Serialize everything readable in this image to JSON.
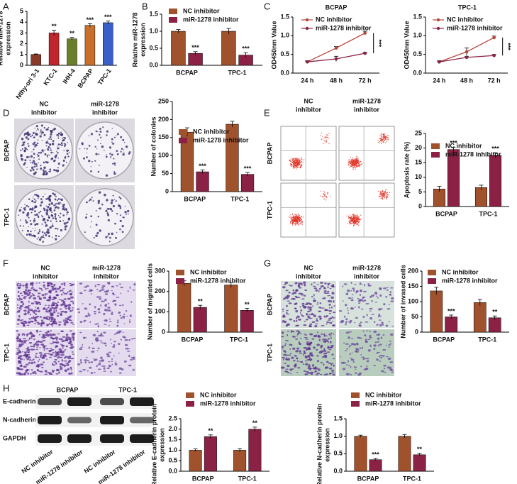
{
  "panel_labels": [
    "A",
    "B",
    "C",
    "D",
    "E",
    "F",
    "G",
    "H"
  ],
  "figures": {
    "D": {
      "columns": [
        [
          "NC",
          "inhibitor"
        ],
        [
          "miR-1278",
          "inhibitor"
        ]
      ],
      "rows": [
        "BCPAP",
        "TPC-1"
      ]
    },
    "E": {
      "columns": [
        [
          "NC",
          "inhibitor"
        ],
        [
          "miR-1278",
          "inhibitor"
        ]
      ],
      "rows": [
        "BCPAP",
        "TPC-1"
      ]
    },
    "F": {
      "columns": [
        [
          "NC",
          "inhibitor"
        ],
        [
          "miR-1278",
          "inhibitor"
        ]
      ],
      "rows": [
        "BCPAP",
        "TPC-1"
      ]
    },
    "G": {
      "columns": [
        [
          "NC",
          "inhibitor"
        ],
        [
          "miR-1278",
          "inhibitor"
        ]
      ],
      "rows": [
        "BCPAP",
        "TPC-1"
      ]
    },
    "H": {
      "columns": [
        "BCPAP",
        "TPC-1"
      ],
      "rows": [
        "E-cadherin",
        "N-cadherin",
        "GAPDH"
      ],
      "lanes": [
        "NC inhibitor",
        "miR-1278 inhibitor",
        "NC inhibitor",
        "miR-1278 inhibitor"
      ]
    }
  },
  "chart_data": [
    {
      "type": "bar",
      "y_label": [
        "Relative miR-1278",
        "expression"
      ],
      "categories": [
        "Nthy-ori 3-1",
        "KTC-1",
        "IHH-4",
        "BCPAP",
        "TPC-1"
      ],
      "values": [
        1.0,
        3.0,
        2.45,
        3.7,
        3.95
      ],
      "errors": [
        0.05,
        0.25,
        0.15,
        0.15,
        0.15
      ],
      "colors": [
        "#8b3a2a",
        "#c0262c",
        "#6b7f2a",
        "#c8702a",
        "#3a5fc8"
      ],
      "annotations": [
        null,
        "**",
        "**",
        "***",
        "***"
      ],
      "ylim": [
        0,
        5
      ],
      "yticks": [
        0,
        1,
        2,
        3,
        4,
        5
      ]
    },
    {
      "type": "grouped_bar",
      "y_label": [
        "Relative miR-1278",
        "expression"
      ],
      "categories": [
        "BCPAP",
        "TPC-1"
      ],
      "series": [
        {
          "name": "NC inhibitor",
          "color": "#a0522d",
          "values": [
            1.0,
            1.0
          ],
          "errors": [
            0.05,
            0.08
          ]
        },
        {
          "name": "miR-1278 inhibitor",
          "color": "#8b2245",
          "values": [
            0.35,
            0.3
          ],
          "errors": [
            0.05,
            0.07
          ],
          "annotations": [
            "***",
            "***"
          ]
        }
      ],
      "ylim": [
        0,
        1.5
      ],
      "yticks": [
        {
          "value": 0,
          "label": "0.0"
        },
        {
          "value": 0.5,
          "label": "0.5"
        },
        {
          "value": 1,
          "label": "1.0"
        },
        {
          "value": 1.5,
          "label": "1.5"
        }
      ]
    },
    {
      "type": "line",
      "title": "BCPAP",
      "y_label": [
        "OD450nm Value"
      ],
      "categories": [
        "24 h",
        "48 h",
        "72 h"
      ],
      "series": [
        {
          "name": "NC inhibitor",
          "color": "#b5473a",
          "values": [
            0.3,
            0.67,
            1.07
          ],
          "errors": [
            0.03,
            0.04,
            0.05
          ]
        },
        {
          "name": "miR-1278 inhibitor",
          "color": "#8b2245",
          "values": [
            0.3,
            0.38,
            0.53
          ],
          "errors": [
            0.02,
            0.07,
            0.03
          ]
        }
      ],
      "annotation": "***",
      "ylim": [
        0,
        1.5
      ],
      "yticks": [
        {
          "value": 0,
          "label": "0.0"
        },
        {
          "value": 0.5,
          "label": "0.5"
        },
        {
          "value": 1,
          "label": "1.0"
        },
        {
          "value": 1.5,
          "label": "1.5"
        }
      ]
    },
    {
      "type": "line",
      "title": "TPC-1",
      "y_label": [
        "OD450nm Value"
      ],
      "categories": [
        "24 h",
        "48 h",
        "72 h"
      ],
      "series": [
        {
          "name": "NC inhibitor",
          "color": "#b5473a",
          "values": [
            0.3,
            0.57,
            0.95
          ],
          "errors": [
            0.03,
            0.1,
            0.04
          ]
        },
        {
          "name": "miR-1278 inhibitor",
          "color": "#8b2245",
          "values": [
            0.3,
            0.42,
            0.47
          ],
          "errors": [
            0.02,
            0.03,
            0.03
          ]
        }
      ],
      "annotation": "***",
      "ylim": [
        0,
        1.5
      ],
      "yticks": [
        {
          "value": 0,
          "label": "0.0"
        },
        {
          "value": 0.5,
          "label": "0.5"
        },
        {
          "value": 1,
          "label": "1.0"
        },
        {
          "value": 1.5,
          "label": "1.5"
        }
      ]
    },
    {
      "type": "grouped_bar",
      "y_label": [
        "Number of colonies"
      ],
      "categories": [
        "BCPAP",
        "TPC-1"
      ],
      "series": [
        {
          "name": "NC inhibitor",
          "color": "#a0522d",
          "values": [
            165,
            187
          ],
          "errors": [
            12,
            8
          ]
        },
        {
          "name": "miR-1278 inhibitor",
          "color": "#8b2245",
          "values": [
            55,
            48
          ],
          "errors": [
            5,
            5
          ],
          "annotations": [
            "***",
            "***"
          ]
        }
      ],
      "ylim": [
        0,
        250
      ],
      "yticks": [
        0,
        50,
        100,
        150,
        200,
        250
      ]
    },
    {
      "type": "grouped_bar",
      "y_label": [
        "Apoptosis rate (%)"
      ],
      "categories": [
        "BCPAP",
        "TPC-1"
      ],
      "series": [
        {
          "name": "NC inhibitor",
          "color": "#a0522d",
          "values": [
            6.0,
            6.5
          ],
          "errors": [
            0.9,
            0.8
          ]
        },
        {
          "name": "miR-1278 inhibitor",
          "color": "#8b2245",
          "values": [
            19.5,
            17.5
          ],
          "errors": [
            0.8,
            0.9
          ],
          "annotations": [
            "***",
            "***"
          ]
        }
      ],
      "ylim": [
        0,
        25
      ],
      "yticks": [
        0,
        5,
        10,
        15,
        20,
        25
      ]
    },
    {
      "type": "grouped_bar",
      "y_label": [
        "Number of migrated cells"
      ],
      "categories": [
        "BCPAP",
        "TPC-1"
      ],
      "series": [
        {
          "name": "NC inhibitor",
          "color": "#a0522d",
          "values": [
            240,
            232
          ],
          "errors": [
            12,
            12
          ]
        },
        {
          "name": "miR-1278 inhibitor",
          "color": "#8b2245",
          "values": [
            122,
            107
          ],
          "errors": [
            10,
            10
          ],
          "annotations": [
            "**",
            "**"
          ]
        }
      ],
      "ylim": [
        0,
        300
      ],
      "yticks": [
        0,
        100,
        200,
        300
      ]
    },
    {
      "type": "grouped_bar",
      "y_label": [
        "Number of invased cells"
      ],
      "categories": [
        "BCPAP",
        "TPC-1"
      ],
      "series": [
        {
          "name": "NC inhibitor",
          "color": "#a0522d",
          "values": [
            135,
            97
          ],
          "errors": [
            12,
            10
          ]
        },
        {
          "name": "miR-1278 inhibitor",
          "color": "#8b2245",
          "values": [
            50,
            47
          ],
          "errors": [
            6,
            6
          ],
          "annotations": [
            "***",
            "**"
          ]
        }
      ],
      "ylim": [
        0,
        200
      ],
      "yticks": [
        0,
        50,
        100,
        150,
        200
      ]
    },
    {
      "type": "grouped_bar",
      "y_label": [
        "Relative E-cadherin protein",
        "expression"
      ],
      "categories": [
        "BCPAP",
        "TPC-1"
      ],
      "series": [
        {
          "name": "NC inhibitor",
          "color": "#a0522d",
          "values": [
            1.0,
            1.0
          ],
          "errors": [
            0.06,
            0.08
          ]
        },
        {
          "name": "miR-1278 inhibitor",
          "color": "#8b2245",
          "values": [
            1.65,
            2.0
          ],
          "errors": [
            0.08,
            0.1
          ],
          "annotations": [
            "**",
            "**"
          ]
        }
      ],
      "ylim": [
        0,
        2.5
      ],
      "yticks": [
        {
          "value": 0,
          "label": "0.0"
        },
        {
          "value": 0.5,
          "label": "0.5"
        },
        {
          "value": 1,
          "label": "1.0"
        },
        {
          "value": 1.5,
          "label": "1.5"
        },
        {
          "value": 2,
          "label": "2.0"
        },
        {
          "value": 2.5,
          "label": "2.5"
        }
      ]
    },
    {
      "type": "grouped_bar",
      "y_label": [
        "Relative N-cadherin protein",
        "expression"
      ],
      "categories": [
        "BCPAP",
        "TPC-1"
      ],
      "series": [
        {
          "name": "NC inhibitor",
          "color": "#a0522d",
          "values": [
            1.0,
            1.0
          ],
          "errors": [
            0.03,
            0.05
          ]
        },
        {
          "name": "miR-1278 inhibitor",
          "color": "#8b2245",
          "values": [
            0.33,
            0.47
          ],
          "errors": [
            0.03,
            0.04
          ],
          "annotations": [
            "***",
            "**"
          ]
        }
      ],
      "ylim": [
        0,
        1.5
      ],
      "yticks": [
        {
          "value": 0,
          "label": "0.0"
        },
        {
          "value": 0.5,
          "label": "0.5"
        },
        {
          "value": 1,
          "label": "1.0"
        },
        {
          "value": 1.5,
          "label": "1.5"
        }
      ]
    }
  ]
}
